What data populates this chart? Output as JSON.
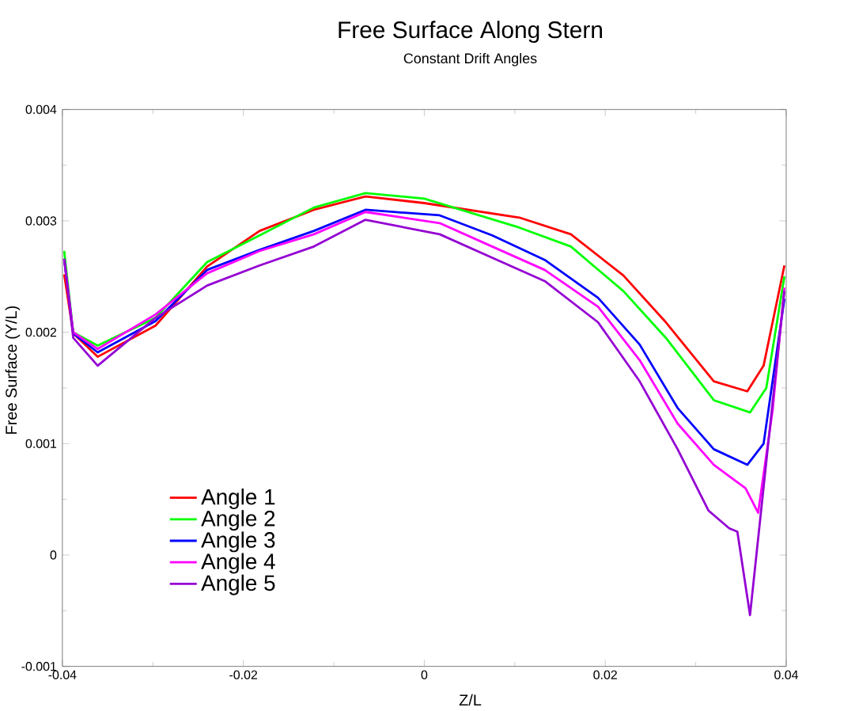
{
  "chart_data": {
    "type": "line",
    "title": "Free Surface Along Stern",
    "subtitle": "Constant Drift Angles",
    "xlabel": "Z/L",
    "ylabel": "Free Surface (Y/L)",
    "xlim": [
      -0.04,
      0.04
    ],
    "ylim": [
      -0.001,
      0.004
    ],
    "xticks": [
      -0.04,
      -0.02,
      0,
      0.02,
      0.04
    ],
    "yticks": [
      -0.001,
      0,
      0.001,
      0.002,
      0.003,
      0.004
    ],
    "legend": "bottom left",
    "grid": false,
    "marker": "none",
    "line_style": "solid",
    "series": [
      {
        "name": "Angle 1",
        "color": "#ff0000",
        "x": [
          -0.0398,
          -0.0388,
          -0.0361,
          -0.0297,
          -0.024,
          -0.0182,
          -0.0122,
          -0.0065,
          0,
          0.0105,
          0.0162,
          0.022,
          0.0267,
          0.032,
          0.0357,
          0.0375,
          0.0398
        ],
        "values": [
          0.00252,
          0.00199,
          0.00178,
          0.00206,
          0.00259,
          0.00291,
          0.0031,
          0.00322,
          0.00316,
          0.00303,
          0.00288,
          0.00251,
          0.00209,
          0.00156,
          0.00147,
          0.0017,
          0.0026
        ]
      },
      {
        "name": "Angle 2",
        "color": "#00ff00",
        "x": [
          -0.0398,
          -0.0388,
          -0.0361,
          -0.0297,
          -0.024,
          -0.0182,
          -0.0122,
          -0.0065,
          0,
          0.0105,
          0.0162,
          0.022,
          0.0267,
          0.032,
          0.036,
          0.0378,
          0.0398
        ],
        "values": [
          0.00273,
          0.002,
          0.00188,
          0.00213,
          0.00263,
          0.00287,
          0.00312,
          0.00325,
          0.0032,
          0.00294,
          0.00277,
          0.00237,
          0.00195,
          0.00139,
          0.00128,
          0.0015,
          0.0025
        ]
      },
      {
        "name": "Angle 3",
        "color": "#0000ff",
        "x": [
          -0.0398,
          -0.0388,
          -0.0361,
          -0.0297,
          -0.024,
          -0.0182,
          -0.0122,
          -0.0065,
          0.0017,
          0.0075,
          0.0133,
          0.0192,
          0.0238,
          0.028,
          0.032,
          0.0357,
          0.0375,
          0.0398
        ],
        "values": [
          0.00266,
          0.00199,
          0.00182,
          0.0021,
          0.00256,
          0.00274,
          0.00291,
          0.0031,
          0.00305,
          0.00287,
          0.00265,
          0.00231,
          0.00189,
          0.00132,
          0.00095,
          0.00081,
          0.001,
          0.0023
        ]
      },
      {
        "name": "Angle 4",
        "color": "#ff00ff",
        "x": [
          -0.0398,
          -0.0388,
          -0.0361,
          -0.0297,
          -0.024,
          -0.0182,
          -0.0122,
          -0.0065,
          0.0017,
          0.0075,
          0.0133,
          0.0192,
          0.0238,
          0.028,
          0.032,
          0.0355,
          0.0369,
          0.0385,
          0.0398
        ],
        "values": [
          0.00266,
          0.002,
          0.00185,
          0.00216,
          0.00253,
          0.00273,
          0.00288,
          0.00308,
          0.00298,
          0.00277,
          0.00256,
          0.00223,
          0.00175,
          0.00118,
          0.00081,
          0.0006,
          0.00038,
          0.0013,
          0.0024
        ]
      },
      {
        "name": "Angle 5",
        "color": "#9400d3",
        "x": [
          -0.0398,
          -0.0388,
          -0.0361,
          -0.0297,
          -0.024,
          -0.0182,
          -0.0122,
          -0.0065,
          0.0017,
          0.0075,
          0.0133,
          0.0192,
          0.0238,
          0.028,
          0.0314,
          0.0337,
          0.0346,
          0.036,
          0.0398
        ],
        "values": [
          0.00266,
          0.00195,
          0.0017,
          0.00213,
          0.00242,
          0.0026,
          0.00277,
          0.00301,
          0.00288,
          0.00267,
          0.00246,
          0.00209,
          0.00156,
          0.00095,
          0.0004,
          0.00024,
          0.00021,
          -0.00054,
          0.00237
        ]
      }
    ]
  }
}
